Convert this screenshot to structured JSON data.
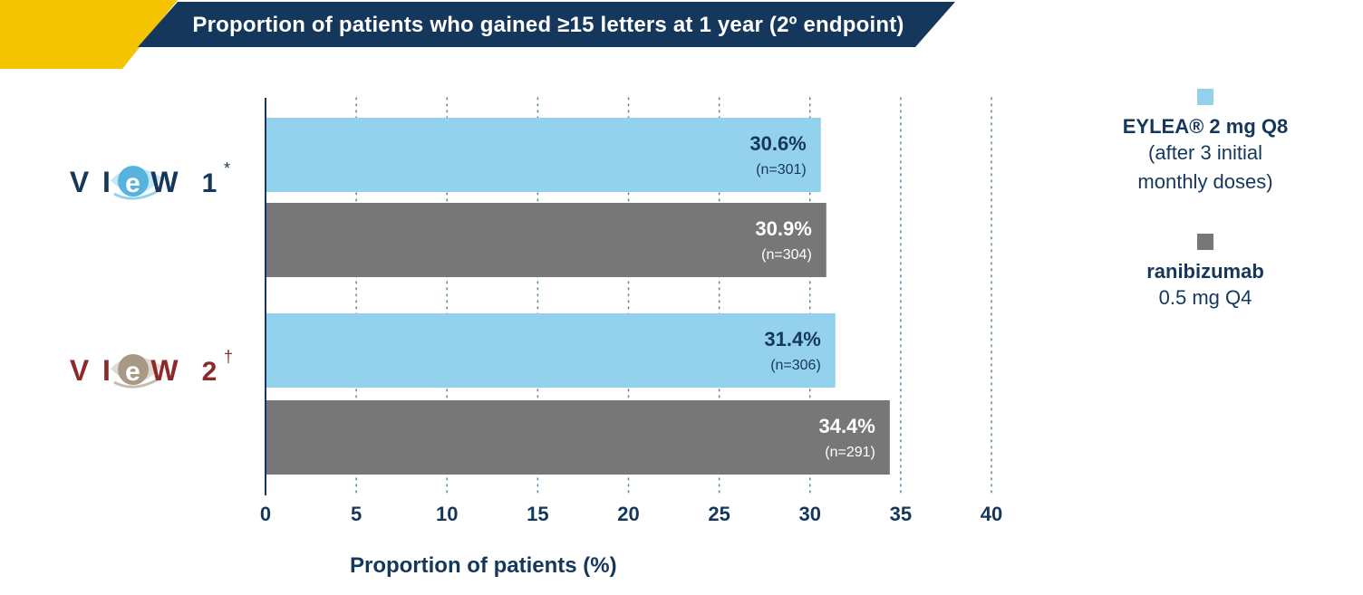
{
  "banner": {
    "title": "Proportion of patients who gained ≥15 letters at 1 year (2º endpoint)"
  },
  "colors": {
    "navy": "#15375c",
    "gold": "#f5c400",
    "eylea": "#93d1ec",
    "ranibizumab": "#777777",
    "view2_red": "#8c2a2a",
    "view2_grey": "#c9bcae"
  },
  "studies": [
    {
      "word": "VIEW",
      "num": "1",
      "mark": "*"
    },
    {
      "word": "VIEW",
      "num": "2",
      "mark": "†"
    }
  ],
  "legend": {
    "eylea": {
      "name": "EYLEA® 2 mg Q8",
      "line1": "(after 3 initial",
      "line2": "monthly doses)"
    },
    "ranibizumab": {
      "name": "ranibizumab",
      "line1": "0.5 mg Q4"
    }
  },
  "chart_data": {
    "type": "bar",
    "orientation": "horizontal",
    "categories": [
      "VIEW 1",
      "VIEW 2"
    ],
    "series": [
      {
        "name": "EYLEA® 2 mg Q8",
        "values": [
          30.6,
          31.4
        ],
        "labels": [
          "30.6%",
          "31.4%"
        ],
        "n": [
          "(n=301)",
          "(n=306)"
        ]
      },
      {
        "name": "ranibizumab",
        "values": [
          30.9,
          34.4
        ],
        "labels": [
          "30.9%",
          "34.4%"
        ],
        "n": [
          "(n=304)",
          "(n=291)"
        ]
      }
    ],
    "xlabel": "Proportion of patients (%)",
    "xlim": [
      0,
      40
    ],
    "xticks": [
      0,
      5,
      10,
      15,
      20,
      25,
      30,
      35,
      40
    ],
    "grid": "vertical dotted"
  }
}
